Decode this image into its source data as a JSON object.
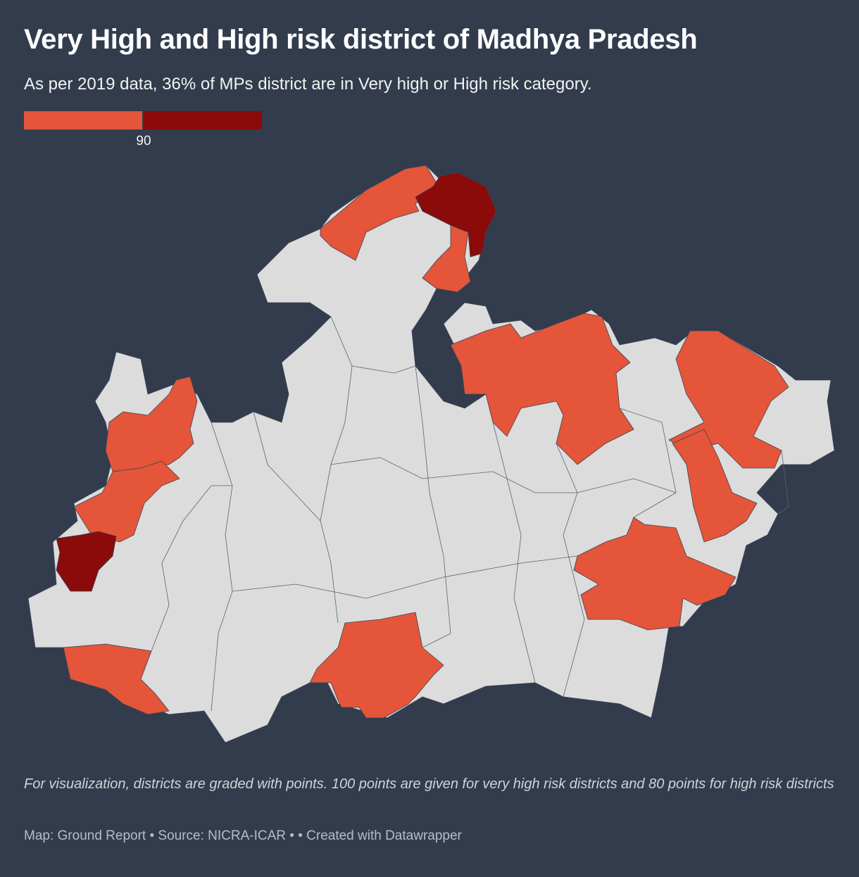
{
  "header": {
    "title": "Very High and High risk district of Madhya Pradesh",
    "subtitle": "As per 2019 data, 36% of MPs district are in Very high or High risk category."
  },
  "legend": {
    "colors": [
      "#e4553a",
      "#8b0a0a"
    ],
    "ticks": [
      90
    ]
  },
  "notes": "For visualization, districts are graded with points. 100 points are given for very high risk districts and 80 points for high risk districts",
  "footer": "Map: Ground Report • Source: NICRA-ICAR • • Created with Datawrapper"
}
